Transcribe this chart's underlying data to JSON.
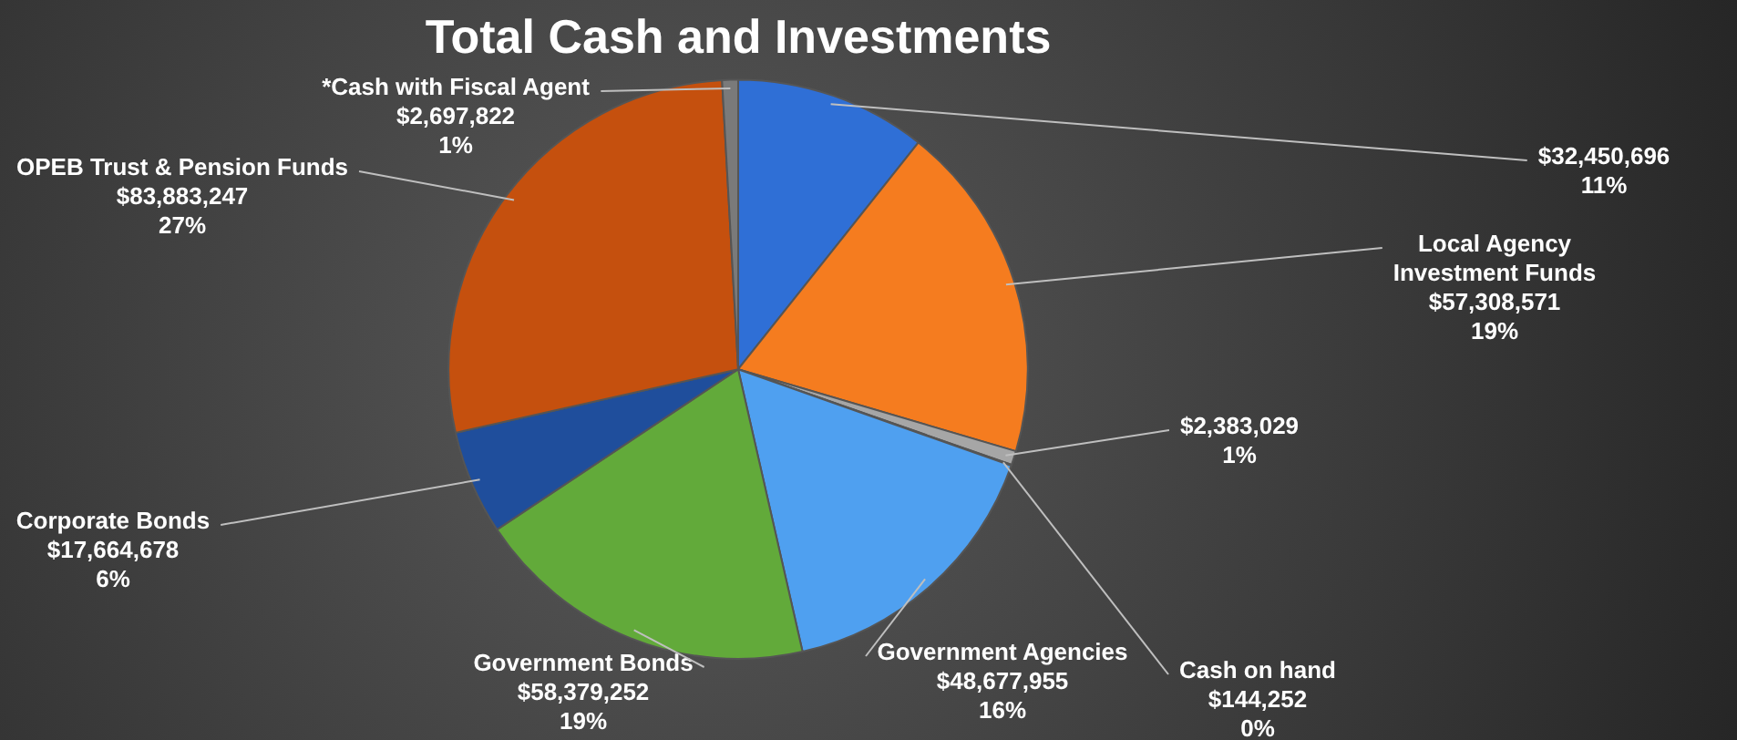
{
  "chart_data": {
    "type": "pie",
    "title": "Total Cash and Investments",
    "categories": [
      null,
      "Local Agency Investment Funds",
      null,
      "Cash on hand",
      "Government Agencies",
      "Government Bonds",
      "Corporate Bonds",
      "OPEB Trust & Pension Funds",
      "*Cash with Fiscal Agent"
    ],
    "values": [
      32450696,
      57308571,
      2383029,
      144252,
      48677955,
      58379252,
      17664678,
      83883247,
      2697822
    ],
    "colors": [
      "#2f6fd6",
      "#f57c1f",
      "#a6a6a6",
      "#ffc000",
      "#4fa0f0",
      "#62aa3a",
      "#1f4e9c",
      "#c5500e",
      "#7a7a7a"
    ],
    "value_labels": [
      "$32,450,696\n11%",
      "$57,308,571\n19%",
      "$2,383,029\n1%",
      "$144,252\n0%",
      "$48,677,955\n16%",
      "$58,379,252\n19%",
      "$17,664,678\n6%",
      "$83,883,247\n27%",
      "$2,697,822\n1%"
    ],
    "legend": false
  }
}
